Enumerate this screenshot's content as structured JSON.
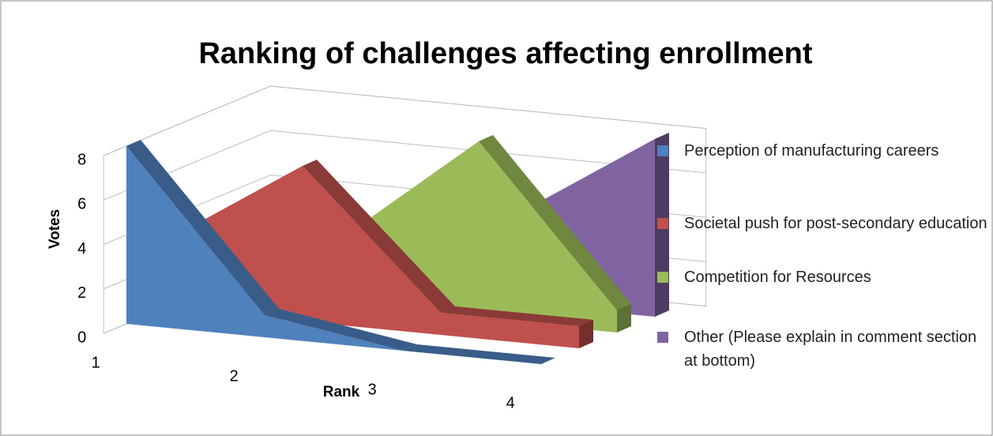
{
  "chart_data": {
    "type": "area3d",
    "title": "Ranking of challenges affecting enrollment",
    "x_label": "Rank",
    "y_label": "Votes",
    "categories": [
      "1",
      "2",
      "3",
      "4"
    ],
    "series": [
      {
        "name": "Perception of manufacturing careers",
        "color": "#4f81bd",
        "values": [
          8,
          1,
          0,
          0
        ]
      },
      {
        "name": "Societal push for post-secondary education",
        "color": "#c0504d",
        "values": [
          3,
          7,
          1,
          1
        ]
      },
      {
        "name": "Competition for Resources",
        "color": "#9bbb59",
        "values": [
          0,
          3,
          8,
          1
        ]
      },
      {
        "name": "Other (Please explain in comment section at bottom)",
        "color": "#8064a2",
        "values": [
          0,
          0,
          4,
          8
        ]
      }
    ],
    "ylim": [
      0,
      8
    ],
    "yticks": [
      0,
      2,
      4,
      6,
      8
    ],
    "grid": true,
    "legend": "right"
  }
}
